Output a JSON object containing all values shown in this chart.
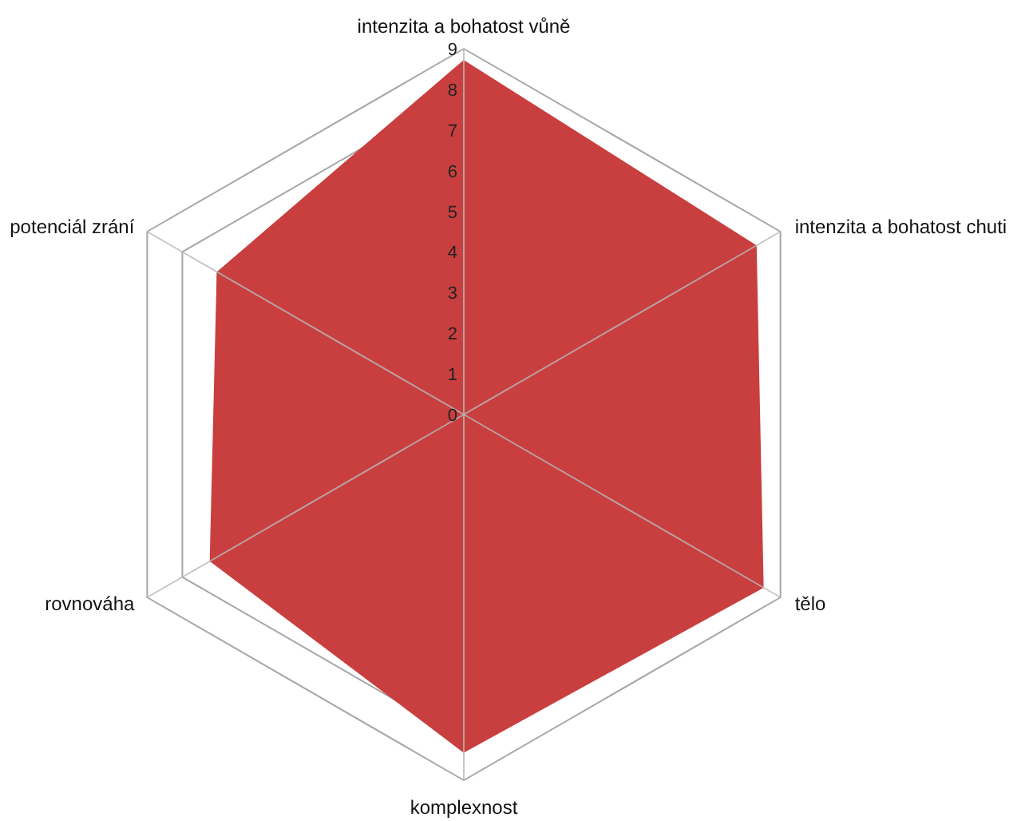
{
  "chart_data": {
    "type": "radar",
    "categories": [
      "intenzita a bohatost vůně",
      "intenzita a bohatost chuti",
      "tělo",
      "komplexnost",
      "rovnováha",
      "potenciál zrání"
    ],
    "series": [
      {
        "color": "#c93f3f",
        "values": [
          8.7,
          8.3,
          8.5,
          8.3,
          7.2,
          7.0
        ]
      }
    ],
    "ylim": [
      0,
      9
    ],
    "yticks": [
      0,
      1,
      2,
      3,
      4,
      5,
      6,
      7,
      8,
      9
    ],
    "grid": true
  }
}
